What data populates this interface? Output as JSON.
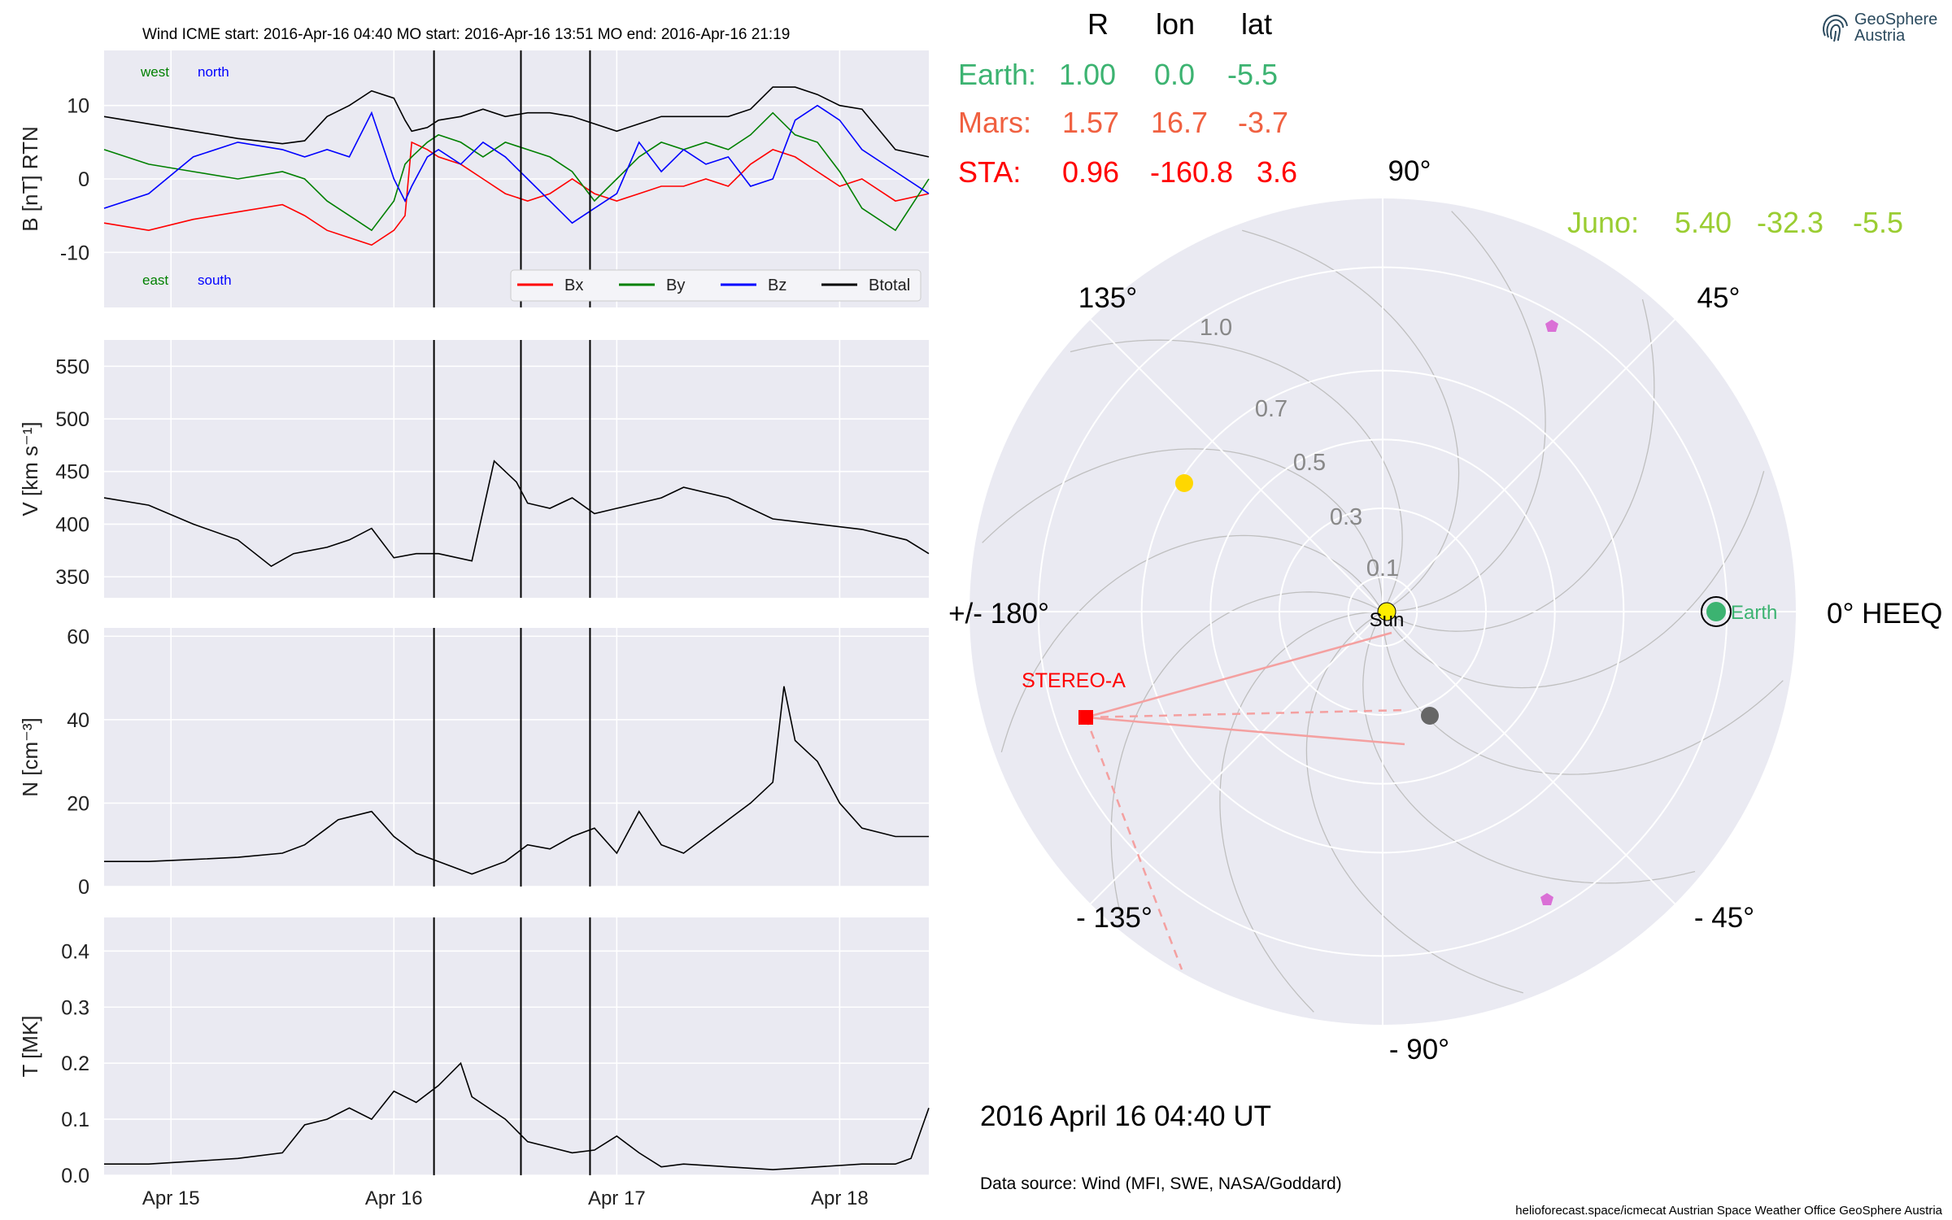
{
  "colors": {
    "earth": "#3cb371",
    "mars": "#f06040",
    "sta": "#ff0000",
    "juno": "#9acd32",
    "bx": "#ff0000",
    "by": "#008000",
    "bz": "#0000ff",
    "btotal": "#000000"
  },
  "header": {
    "title": "Wind    ICME start: 2016-Apr-16 04:40    MO start: 2016-Apr-16 13:51    MO end: 2016-Apr-16 21:19"
  },
  "brand": {
    "name": "GeoSphere",
    "sub": "Austria",
    "icon": "fingerprint-logo-icon"
  },
  "positions": {
    "headers": [
      "R",
      "lon",
      "lat"
    ],
    "rows": [
      {
        "label": "Earth:",
        "r": "1.00",
        "lon": "0.0",
        "lat": "-5.5"
      },
      {
        "label": "Mars:",
        "r": "1.57",
        "lon": "16.7",
        "lat": "-3.7"
      },
      {
        "label": "STA:",
        "r": "0.96",
        "lon": "-160.8",
        "lat": "3.6"
      }
    ],
    "juno": {
      "label": "Juno:",
      "r": "5.40",
      "lon": "-32.3",
      "lat": "-5.5"
    }
  },
  "polar": {
    "angle_labels": [
      "90°",
      "45°",
      "0° HEEQ",
      "- 45°",
      "- 90°",
      "- 135°",
      "+/- 180°",
      "135°"
    ],
    "radial_labels": [
      "0.1",
      "0.3",
      "0.5",
      "0.7",
      "1.0"
    ],
    "sun_label": "Sun",
    "earth_label": "Earth",
    "stereo_label": "STEREO-A"
  },
  "date_text": "2016 April 16  04:40 UT",
  "data_source": "Data source: Wind (MFI, SWE, NASA/Goddard)",
  "footer": "helioforecast.space/icmecat   Austrian Space Weather Office   GeoSphere Austria",
  "chart_data": [
    {
      "type": "line",
      "panel": "magnetic_field",
      "ylabel": "B [nT] RTN",
      "ylim": [
        -17.5,
        17.5
      ],
      "yticks": [
        -10,
        0,
        10
      ],
      "annotations": {
        "top_left": [
          "west",
          "north"
        ],
        "bottom_left": [
          "east",
          "south"
        ]
      },
      "legend": {
        "position": "bottom-right",
        "entries": [
          "Bx",
          "By",
          "Bz",
          "Btotal"
        ]
      },
      "x": [
        0.0,
        0.2,
        0.4,
        0.6,
        0.8,
        0.9,
        1.0,
        1.1,
        1.2,
        1.3,
        1.35,
        1.38,
        1.45,
        1.5,
        1.6,
        1.7,
        1.8,
        1.9,
        2.0,
        2.1,
        2.2,
        2.3,
        2.4,
        2.5,
        2.6,
        2.7,
        2.8,
        2.9,
        3.0,
        3.1,
        3.2,
        3.3,
        3.4,
        3.55,
        3.7
      ],
      "series": [
        {
          "name": "Btotal",
          "values": [
            8.5,
            7.5,
            6.5,
            5.5,
            4.8,
            5.2,
            8.5,
            10,
            12,
            11,
            8,
            6.5,
            7,
            8,
            8.5,
            9.5,
            8.5,
            9,
            9,
            8.5,
            7.5,
            6.5,
            7.5,
            8.5,
            8.5,
            8.5,
            8.5,
            9.5,
            12.5,
            12.5,
            11.5,
            10,
            9.5,
            4,
            3
          ]
        },
        {
          "name": "Bx",
          "values": [
            -6,
            -7,
            -5.5,
            -4.5,
            -3.5,
            -5,
            -7,
            -8,
            -9,
            -7,
            -5,
            5,
            4,
            3,
            2,
            0,
            -2,
            -3,
            -2,
            0,
            -2,
            -3,
            -2,
            -1,
            -1,
            0,
            -1,
            2,
            4,
            3,
            1,
            -1,
            0,
            -3,
            -2
          ]
        },
        {
          "name": "By",
          "values": [
            4,
            2,
            1,
            0,
            1,
            0,
            -3,
            -5,
            -7,
            -3,
            2,
            3,
            5,
            6,
            5,
            3,
            5,
            4,
            3,
            1,
            -3,
            0,
            3,
            5,
            4,
            5,
            4,
            6,
            9,
            6,
            5,
            1,
            -4,
            -7,
            0
          ]
        },
        {
          "name": "Bz",
          "values": [
            -4,
            -2,
            3,
            5,
            4,
            3,
            4,
            3,
            9,
            0,
            -3,
            -1,
            3,
            4,
            2,
            5,
            3,
            0,
            -3,
            -6,
            -4,
            -2,
            5,
            1,
            4,
            2,
            3,
            -1,
            0,
            8,
            10,
            8,
            4,
            1,
            -2
          ]
        }
      ]
    },
    {
      "type": "line",
      "panel": "speed",
      "ylabel": "V [km s⁻¹]",
      "ylim": [
        330,
        575
      ],
      "yticks": [
        350,
        400,
        450,
        500,
        550
      ],
      "x": [
        0.0,
        0.2,
        0.4,
        0.6,
        0.75,
        0.85,
        1.0,
        1.1,
        1.2,
        1.3,
        1.4,
        1.5,
        1.65,
        1.75,
        1.85,
        1.9,
        2.0,
        2.1,
        2.2,
        2.3,
        2.4,
        2.5,
        2.6,
        2.8,
        3.0,
        3.2,
        3.4,
        3.6,
        3.7
      ],
      "series": [
        {
          "name": "V",
          "values": [
            425,
            418,
            400,
            385,
            360,
            372,
            378,
            385,
            396,
            368,
            372,
            372,
            365,
            460,
            440,
            420,
            415,
            425,
            410,
            415,
            420,
            425,
            435,
            425,
            405,
            400,
            395,
            385,
            372
          ]
        }
      ]
    },
    {
      "type": "line",
      "panel": "density",
      "ylabel": "N [cm⁻³]",
      "ylim": [
        0,
        62
      ],
      "yticks": [
        0,
        20,
        40,
        60
      ],
      "x": [
        0.0,
        0.2,
        0.4,
        0.6,
        0.8,
        0.9,
        1.0,
        1.05,
        1.2,
        1.3,
        1.4,
        1.5,
        1.6,
        1.65,
        1.8,
        1.9,
        2.0,
        2.1,
        2.2,
        2.3,
        2.4,
        2.5,
        2.6,
        2.7,
        2.8,
        2.9,
        3.0,
        3.05,
        3.1,
        3.2,
        3.3,
        3.4,
        3.55,
        3.7
      ],
      "series": [
        {
          "name": "N",
          "values": [
            6,
            6,
            6.5,
            7,
            8,
            10,
            14,
            16,
            18,
            12,
            8,
            6,
            4,
            3,
            6,
            10,
            9,
            12,
            14,
            8,
            18,
            10,
            8,
            12,
            16,
            20,
            25,
            48,
            35,
            30,
            20,
            14,
            12,
            12
          ]
        }
      ]
    },
    {
      "type": "line",
      "panel": "temperature",
      "ylabel": "T [MK]",
      "ylim": [
        0,
        0.46
      ],
      "yticks": [
        0.0,
        0.1,
        0.2,
        0.3,
        0.4
      ],
      "x": [
        0.0,
        0.2,
        0.4,
        0.6,
        0.8,
        0.9,
        1.0,
        1.1,
        1.2,
        1.3,
        1.4,
        1.5,
        1.6,
        1.65,
        1.8,
        1.9,
        2.0,
        2.1,
        2.2,
        2.3,
        2.4,
        2.5,
        2.6,
        2.8,
        3.0,
        3.2,
        3.4,
        3.55,
        3.62,
        3.7
      ],
      "series": [
        {
          "name": "T",
          "values": [
            0.02,
            0.02,
            0.025,
            0.03,
            0.04,
            0.09,
            0.1,
            0.12,
            0.1,
            0.15,
            0.13,
            0.16,
            0.2,
            0.14,
            0.1,
            0.06,
            0.05,
            0.04,
            0.045,
            0.07,
            0.04,
            0.015,
            0.02,
            0.015,
            0.01,
            0.015,
            0.02,
            0.02,
            0.03,
            0.12
          ]
        }
      ]
    }
  ],
  "x_axis": {
    "tick_labels": [
      "Apr 15",
      "Apr 16",
      "Apr 17",
      "Apr 18"
    ],
    "tick_pos": [
      0.3,
      1.3,
      2.3,
      3.3
    ],
    "range": [
      0.0,
      3.7
    ],
    "event_lines": [
      1.48,
      1.87,
      2.18
    ]
  },
  "polar_bodies": [
    {
      "name": "Earth",
      "r": 1.0,
      "lon": 0.0
    },
    {
      "name": "Mars",
      "lon": 16.7
    },
    {
      "name": "STEREO-A",
      "r": 0.96,
      "lon": -160.8
    },
    {
      "name": "Venus",
      "r": 0.72,
      "lon": 148
    },
    {
      "name": "Mercury",
      "r": 0.32,
      "lon": -68
    },
    {
      "name": "probe-1",
      "r": 1.0,
      "lon": 52
    },
    {
      "name": "probe-2",
      "r": 1.0,
      "lon": -53
    }
  ]
}
